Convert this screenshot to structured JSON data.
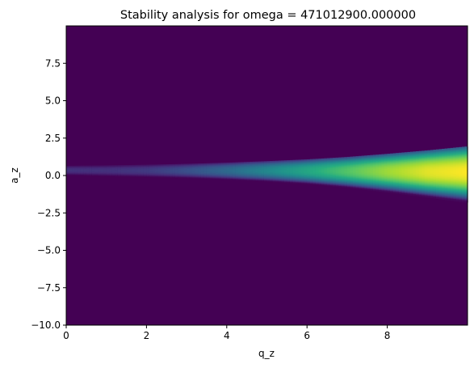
{
  "chart_data": {
    "type": "heatmap",
    "title": "Stability analysis for omega = 471012900.000000",
    "xlabel": "q_z",
    "ylabel": "a_z",
    "xlim": [
      0,
      10
    ],
    "ylim": [
      -10,
      10
    ],
    "x_ticks": [
      0,
      2,
      4,
      6,
      8
    ],
    "x_tick_labels": [
      "0",
      "2",
      "4",
      "6",
      "8"
    ],
    "y_ticks": [
      7.5,
      5.0,
      2.5,
      0.0,
      -2.5,
      -5.0,
      -7.5,
      -10.0
    ],
    "y_tick_labels": [
      "7.5",
      "5.0",
      "2.5",
      "0.0",
      "−2.5",
      "−5.0",
      "−7.5",
      "−10.0"
    ],
    "grid": false,
    "colormap": "viridis",
    "background_color": "#440154",
    "band": {
      "description_points_q": [
        0,
        1,
        2,
        3,
        4,
        5,
        6,
        7,
        8,
        9,
        10
      ],
      "upper_a": [
        0.65,
        0.68,
        0.72,
        0.78,
        0.86,
        0.96,
        1.08,
        1.24,
        1.45,
        1.68,
        1.95
      ],
      "lower_a": [
        0.05,
        -0.02,
        -0.08,
        -0.15,
        -0.25,
        -0.38,
        -0.55,
        -0.8,
        -1.1,
        -1.45,
        -1.8
      ],
      "peak_intensity_q": [
        0,
        1,
        2,
        3,
        4,
        5,
        6,
        7,
        8,
        9,
        10
      ],
      "peak_intensity": [
        0.15,
        0.15,
        0.18,
        0.25,
        0.35,
        0.47,
        0.6,
        0.73,
        0.86,
        0.96,
        1.0
      ]
    }
  }
}
